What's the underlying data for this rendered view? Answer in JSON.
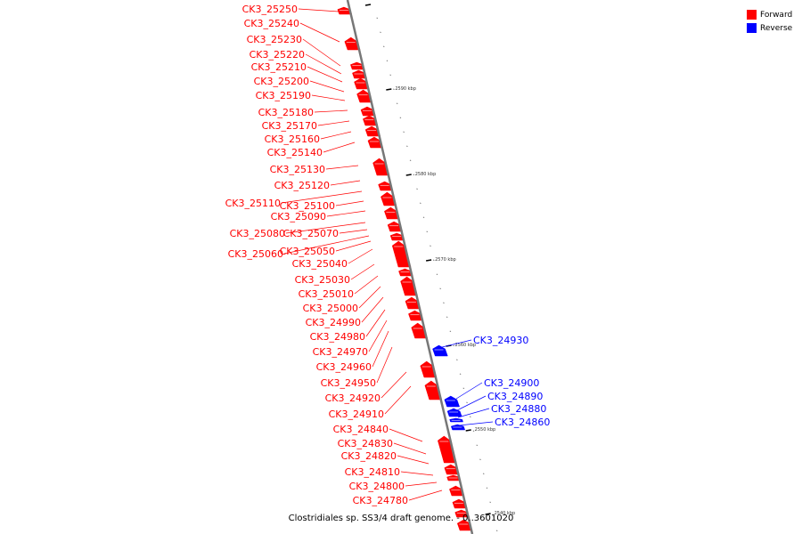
{
  "colors": {
    "forward": "#ff0000",
    "reverse": "#0000ff",
    "backbone": "#777777"
  },
  "legend": [
    {
      "label": "Forward",
      "color": "#ff0000"
    },
    {
      "label": "Reverse",
      "color": "#0000ff"
    }
  ],
  "title": "Clostridiales sp. SS3/4 draft genome. - 0..3601020",
  "position_ticks": [
    "2590 kbp",
    "2580 kbp",
    "2570 kbp",
    "2560 kbp",
    "2550 kbp",
    "2540 kbp"
  ],
  "forward_genes": [
    "CK3_25250",
    "CK3_25240",
    "CK3_25230",
    "CK3_25220",
    "CK3_25210",
    "CK3_25200",
    "CK3_25190",
    "CK3_25180",
    "CK3_25170",
    "CK3_25160",
    "CK3_25140",
    "CK3_25130",
    "CK3_25120",
    "CK3_25110",
    "CK3_25100",
    "CK3_25090",
    "CK3_25080",
    "CK3_25070",
    "CK3_25060",
    "CK3_25050",
    "CK3_25040",
    "CK3_25030",
    "CK3_25010",
    "CK3_25000",
    "CK3_24990",
    "CK3_24980",
    "CK3_24970",
    "CK3_24960",
    "CK3_24950",
    "CK3_24920",
    "CK3_24910",
    "CK3_24840",
    "CK3_24830",
    "CK3_24820",
    "CK3_24810",
    "CK3_24800",
    "CK3_24780"
  ],
  "reverse_genes": [
    "CK3_24930",
    "CK3_24900",
    "CK3_24890",
    "CK3_24880",
    "CK3_24860"
  ]
}
